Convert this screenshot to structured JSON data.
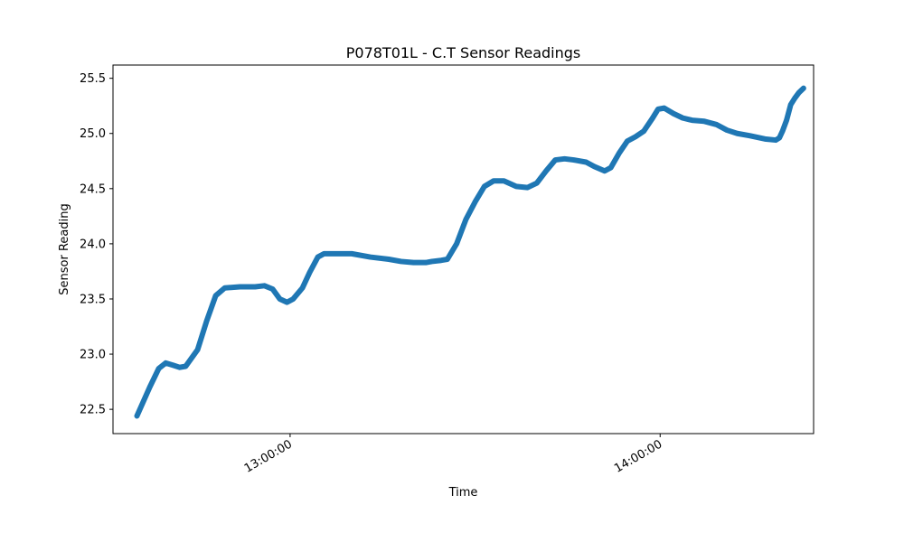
{
  "chart_data": {
    "type": "line",
    "title": "P078T01L - C.T Sensor Readings",
    "xlabel": "Time",
    "ylabel": "Sensor Reading",
    "x_ticks": [
      {
        "time": "13:00:00",
        "label": "13:00:00"
      },
      {
        "time": "14:00:00",
        "label": "14:00:00"
      }
    ],
    "y_ticks": [
      22.5,
      23.0,
      23.5,
      24.0,
      24.5,
      25.0,
      25.5
    ],
    "xlim": [
      "12:31:17",
      "14:24:53"
    ],
    "ylim": [
      22.28,
      25.62
    ],
    "grid": false,
    "series": [
      {
        "color": "#1f77b4",
        "points": [
          [
            "12:35:10",
            22.44
          ],
          [
            "12:37:14",
            22.7
          ],
          [
            "12:38:42",
            22.87
          ],
          [
            "12:39:50",
            22.92
          ],
          [
            "12:41:00",
            22.9
          ],
          [
            "12:42:05",
            22.88
          ],
          [
            "12:43:04",
            22.89
          ],
          [
            "12:45:00",
            23.04
          ],
          [
            "12:46:28",
            23.3
          ],
          [
            "12:47:56",
            23.53
          ],
          [
            "12:49:24",
            23.6
          ],
          [
            "12:51:52",
            23.61
          ],
          [
            "12:54:20",
            23.61
          ],
          [
            "12:55:50",
            23.62
          ],
          [
            "12:57:10",
            23.59
          ],
          [
            "12:58:20",
            23.5
          ],
          [
            "12:59:30",
            23.47
          ],
          [
            "13:00:30",
            23.5
          ],
          [
            "13:02:00",
            23.6
          ],
          [
            "13:03:10",
            23.74
          ],
          [
            "13:04:30",
            23.88
          ],
          [
            "13:05:30",
            23.91
          ],
          [
            "13:08:00",
            23.91
          ],
          [
            "13:10:00",
            23.91
          ],
          [
            "13:13:00",
            23.88
          ],
          [
            "13:16:00",
            23.86
          ],
          [
            "13:18:00",
            23.84
          ],
          [
            "13:20:00",
            23.83
          ],
          [
            "13:22:00",
            23.83
          ],
          [
            "13:23:00",
            23.84
          ],
          [
            "13:24:30",
            23.85
          ],
          [
            "13:25:30",
            23.86
          ],
          [
            "13:27:00",
            24.0
          ],
          [
            "13:28:30",
            24.22
          ],
          [
            "13:30:00",
            24.38
          ],
          [
            "13:31:30",
            24.52
          ],
          [
            "13:33:00",
            24.57
          ],
          [
            "13:34:40",
            24.57
          ],
          [
            "13:36:40",
            24.52
          ],
          [
            "13:38:30",
            24.51
          ],
          [
            "13:40:00",
            24.55
          ],
          [
            "13:41:30",
            24.66
          ],
          [
            "13:43:00",
            24.76
          ],
          [
            "13:44:30",
            24.77
          ],
          [
            "13:46:00",
            24.76
          ],
          [
            "13:48:00",
            24.74
          ],
          [
            "13:49:20",
            24.7
          ],
          [
            "13:51:00",
            24.66
          ],
          [
            "13:52:00",
            24.69
          ],
          [
            "13:53:20",
            24.82
          ],
          [
            "13:54:40",
            24.93
          ],
          [
            "13:56:00",
            24.97
          ],
          [
            "13:57:20",
            25.02
          ],
          [
            "13:58:40",
            25.13
          ],
          [
            "13:59:40",
            25.22
          ],
          [
            "14:00:40",
            25.23
          ],
          [
            "14:02:10",
            25.18
          ],
          [
            "14:03:40",
            25.14
          ],
          [
            "14:05:10",
            25.12
          ],
          [
            "14:07:10",
            25.11
          ],
          [
            "14:09:10",
            25.08
          ],
          [
            "14:10:50",
            25.03
          ],
          [
            "14:12:30",
            25.0
          ],
          [
            "14:14:30",
            24.98
          ],
          [
            "14:17:00",
            24.95
          ],
          [
            "14:18:45",
            24.94
          ],
          [
            "14:19:20",
            24.96
          ],
          [
            "14:19:50",
            25.02
          ],
          [
            "14:20:30",
            25.12
          ],
          [
            "14:21:10",
            25.26
          ],
          [
            "14:21:50",
            25.32
          ],
          [
            "14:22:30",
            25.37
          ],
          [
            "14:23:15",
            25.41
          ]
        ]
      }
    ]
  }
}
